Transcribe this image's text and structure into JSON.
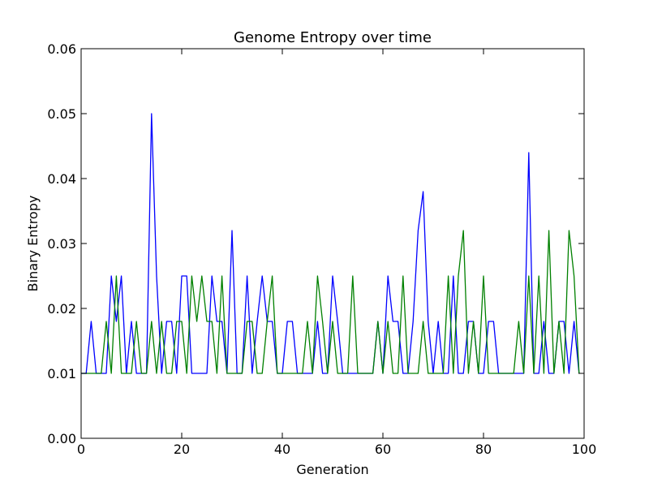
{
  "chart_data": {
    "type": "line",
    "title": "Genome Entropy over time",
    "xlabel": "Generation",
    "ylabel": "Binary Entropy",
    "xlim": [
      0,
      100
    ],
    "ylim": [
      0,
      0.06
    ],
    "x_ticks": [
      "0",
      "20",
      "40",
      "60",
      "80",
      "100"
    ],
    "y_ticks": [
      "0.00",
      "0.01",
      "0.02",
      "0.03",
      "0.04",
      "0.05",
      "0.06"
    ],
    "grid": false,
    "series": [
      {
        "color": "#0000ff",
        "x": [
          0,
          1,
          2,
          3,
          4,
          5,
          6,
          7,
          8,
          9,
          10,
          11,
          12,
          13,
          14,
          15,
          16,
          17,
          18,
          19,
          20,
          21,
          22,
          23,
          24,
          25,
          26,
          27,
          28,
          29,
          30,
          31,
          32,
          33,
          34,
          35,
          36,
          37,
          38,
          39,
          40,
          41,
          42,
          43,
          44,
          45,
          46,
          47,
          48,
          49,
          50,
          51,
          52,
          53,
          54,
          55,
          56,
          57,
          58,
          59,
          60,
          61,
          62,
          63,
          64,
          65,
          66,
          67,
          68,
          69,
          70,
          71,
          72,
          73,
          74,
          75,
          76,
          77,
          78,
          79,
          80,
          81,
          82,
          83,
          84,
          85,
          86,
          87,
          88,
          89,
          90,
          91,
          92,
          93,
          94,
          95,
          96,
          97,
          98,
          99
        ],
        "values": [
          0.01,
          0.01,
          0.018,
          0.01,
          0.01,
          0.01,
          0.025,
          0.018,
          0.025,
          0.01,
          0.018,
          0.01,
          0.01,
          0.01,
          0.05,
          0.025,
          0.01,
          0.018,
          0.018,
          0.01,
          0.025,
          0.025,
          0.01,
          0.01,
          0.01,
          0.01,
          0.025,
          0.018,
          0.018,
          0.01,
          0.032,
          0.01,
          0.01,
          0.025,
          0.01,
          0.018,
          0.025,
          0.018,
          0.018,
          0.01,
          0.01,
          0.018,
          0.018,
          0.01,
          0.01,
          0.01,
          0.01,
          0.018,
          0.01,
          0.01,
          0.025,
          0.018,
          0.01,
          0.01,
          0.01,
          0.01,
          0.01,
          0.01,
          0.01,
          0.018,
          0.01,
          0.025,
          0.018,
          0.018,
          0.01,
          0.01,
          0.018,
          0.032,
          0.038,
          0.018,
          0.01,
          0.018,
          0.01,
          0.01,
          0.025,
          0.01,
          0.01,
          0.018,
          0.018,
          0.01,
          0.01,
          0.018,
          0.018,
          0.01,
          0.01,
          0.01,
          0.01,
          0.01,
          0.01,
          0.044,
          0.01,
          0.01,
          0.018,
          0.01,
          0.01,
          0.018,
          0.018,
          0.01,
          0.018,
          0.01
        ]
      },
      {
        "color": "#008000",
        "x": [
          0,
          1,
          2,
          3,
          4,
          5,
          6,
          7,
          8,
          9,
          10,
          11,
          12,
          13,
          14,
          15,
          16,
          17,
          18,
          19,
          20,
          21,
          22,
          23,
          24,
          25,
          26,
          27,
          28,
          29,
          30,
          31,
          32,
          33,
          34,
          35,
          36,
          37,
          38,
          39,
          40,
          41,
          42,
          43,
          44,
          45,
          46,
          47,
          48,
          49,
          50,
          51,
          52,
          53,
          54,
          55,
          56,
          57,
          58,
          59,
          60,
          61,
          62,
          63,
          64,
          65,
          66,
          67,
          68,
          69,
          70,
          71,
          72,
          73,
          74,
          75,
          76,
          77,
          78,
          79,
          80,
          81,
          82,
          83,
          84,
          85,
          86,
          87,
          88,
          89,
          90,
          91,
          92,
          93,
          94,
          95,
          96,
          97,
          98,
          99
        ],
        "values": [
          0.01,
          0.01,
          0.01,
          0.01,
          0.01,
          0.018,
          0.01,
          0.025,
          0.01,
          0.01,
          0.01,
          0.018,
          0.01,
          0.01,
          0.018,
          0.01,
          0.018,
          0.01,
          0.01,
          0.018,
          0.018,
          0.01,
          0.025,
          0.018,
          0.025,
          0.018,
          0.018,
          0.01,
          0.025,
          0.01,
          0.01,
          0.01,
          0.01,
          0.018,
          0.018,
          0.01,
          0.01,
          0.018,
          0.025,
          0.01,
          0.01,
          0.01,
          0.01,
          0.01,
          0.01,
          0.018,
          0.01,
          0.025,
          0.018,
          0.01,
          0.018,
          0.01,
          0.01,
          0.01,
          0.025,
          0.01,
          0.01,
          0.01,
          0.01,
          0.018,
          0.01,
          0.018,
          0.01,
          0.01,
          0.025,
          0.01,
          0.01,
          0.01,
          0.018,
          0.01,
          0.01,
          0.01,
          0.01,
          0.025,
          0.01,
          0.025,
          0.032,
          0.01,
          0.018,
          0.01,
          0.025,
          0.01,
          0.01,
          0.01,
          0.01,
          0.01,
          0.01,
          0.018,
          0.01,
          0.025,
          0.01,
          0.025,
          0.01,
          0.032,
          0.01,
          0.018,
          0.01,
          0.032,
          0.025,
          0.01
        ]
      }
    ]
  }
}
